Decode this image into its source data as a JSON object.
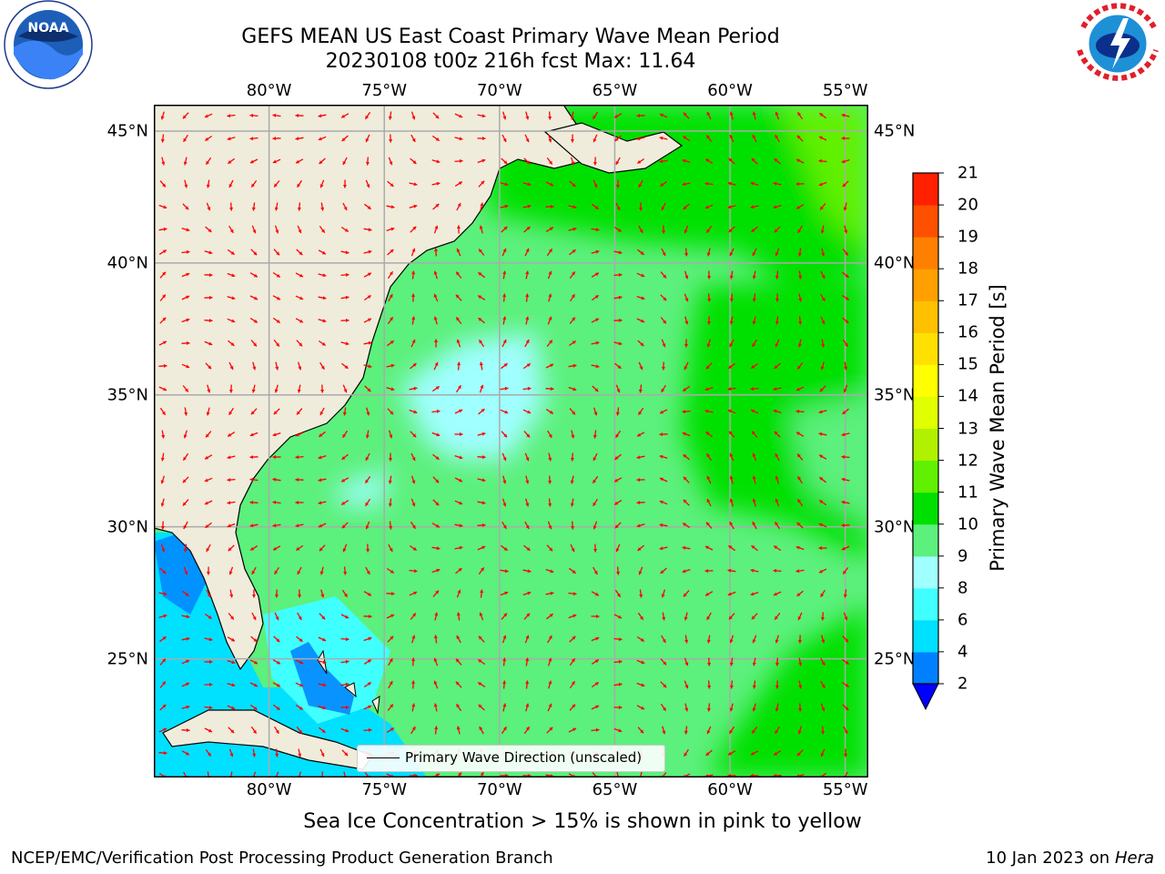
{
  "title": {
    "line1": "GEFS MEAN US East Coast Primary Wave Mean Period",
    "line2": "20230108 t00z 216h fcst   Max: 11.64"
  },
  "logos": {
    "left": {
      "name": "noaa-logo",
      "text": "NOAA"
    },
    "right": {
      "name": "nws-logo",
      "text": "NATIONAL WEATHER SERVICE"
    }
  },
  "map": {
    "lon_range": [
      -85,
      -54
    ],
    "lat_range": [
      20.5,
      46
    ],
    "lon_ticks": [
      {
        "value": -80,
        "label": "80°W"
      },
      {
        "value": -75,
        "label": "75°W"
      },
      {
        "value": -70,
        "label": "70°W"
      },
      {
        "value": -65,
        "label": "65°W"
      },
      {
        "value": -60,
        "label": "60°W"
      },
      {
        "value": -55,
        "label": "55°W"
      }
    ],
    "lat_ticks": [
      {
        "value": 45,
        "label": "45°N"
      },
      {
        "value": 40,
        "label": "40°N"
      },
      {
        "value": 35,
        "label": "35°N"
      },
      {
        "value": 30,
        "label": "30°N"
      },
      {
        "value": 25,
        "label": "25°N"
      }
    ],
    "grid": true,
    "colors": {
      "land": "#efecdc",
      "ocean_default": "#5cf07c",
      "arrow": "#ff0000",
      "grid": "#aaaaaa"
    }
  },
  "legend": {
    "label": "Primary Wave Direction (unscaled)"
  },
  "colorbar": {
    "label": "Primary Wave Mean Period [s]",
    "ticks": [
      "21",
      "20",
      "19",
      "18",
      "17",
      "16",
      "15",
      "14",
      "13",
      "12",
      "11",
      "10",
      "9",
      "8",
      "6",
      "4",
      "2"
    ],
    "colors": [
      "#0000ff",
      "#0080ff",
      "#00e0ff",
      "#40ffff",
      "#a0ffff",
      "#5cf07c",
      "#00e000",
      "#60f000",
      "#b0f000",
      "#e0ff00",
      "#ffff00",
      "#ffe000",
      "#ffc000",
      "#ffa000",
      "#ff8000",
      "#ff5000",
      "#ff2000",
      "#ff0000"
    ]
  },
  "note": "Sea Ice Concentration > 15% is shown in pink to yellow",
  "footer": {
    "left": "NCEP/EMC/Verification Post Processing Product Generation Branch",
    "right_date": "10 Jan 2023 on ",
    "right_host": "Hera"
  }
}
